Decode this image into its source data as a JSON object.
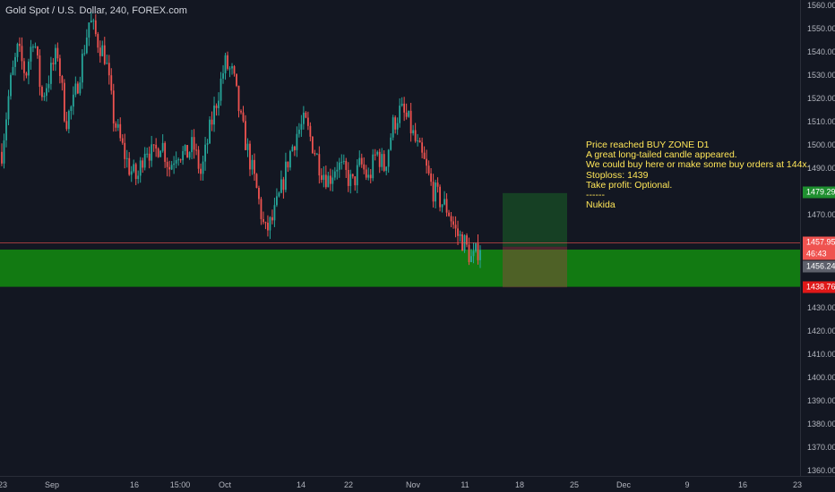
{
  "header": {
    "title": "Gold Spot / U.S. Dollar, 240, FOREX.com"
  },
  "annotation": {
    "lines": [
      "Price reached BUY ZONE D1",
      "A great long-tailed candle appeared.",
      "We could buy here or make some buy orders at 144x.",
      "Stoploss: 1439",
      "Take profit: Optional.",
      "------",
      "Nukida"
    ]
  },
  "price_axis": {
    "ticks": [
      "1560.00",
      "1550.00",
      "1540.00",
      "1530.00",
      "1520.00",
      "1510.00",
      "1500.00",
      "1490.00",
      "1470.00",
      "1430.00",
      "1420.00",
      "1410.00",
      "1400.00",
      "1390.00",
      "1380.00",
      "1370.00",
      "1360.00"
    ]
  },
  "price_labels": {
    "take_profit": {
      "text": "1479.29",
      "color": "#1e8f2f"
    },
    "current": {
      "text": "1457.95",
      "color": "#ef5350"
    },
    "countdown": {
      "text": "46:43",
      "color": "#ef5350"
    },
    "entry": {
      "text": "1456.24",
      "color": "#5d606b"
    },
    "stoploss": {
      "text": "1438.76",
      "color": "#e01818"
    }
  },
  "time_axis": {
    "ticks": [
      "23",
      "Sep",
      "16",
      "15:00",
      "Oct",
      "14",
      "22",
      "Nov",
      "11",
      "18",
      "25",
      "Dec",
      "9",
      "16",
      "23"
    ]
  },
  "colors": {
    "background": "#131722",
    "up": "#26a69a",
    "down": "#ef5350",
    "zone": "#127a12",
    "annotation": "#ffe658"
  },
  "chart_data": {
    "type": "candlestick",
    "symbol": "XAUUSD",
    "ylim": [
      1358,
      1562
    ],
    "current_price": 1457.95,
    "buy_zone": [
      1439,
      1455
    ],
    "position": {
      "entry": 1456.24,
      "take_profit": 1479.29,
      "stop_loss": 1438.76
    },
    "path": [
      1497,
      1525,
      1541,
      1530,
      1548,
      1520,
      1530,
      1540,
      1510,
      1518,
      1535,
      1554,
      1545,
      1538,
      1512,
      1500,
      1490,
      1485,
      1500,
      1495,
      1502,
      1490,
      1498,
      1495,
      1500,
      1487,
      1505,
      1520,
      1535,
      1530,
      1510,
      1495,
      1480,
      1462,
      1468,
      1480,
      1495,
      1505,
      1510,
      1500,
      1490,
      1485,
      1492,
      1488,
      1483,
      1492,
      1485,
      1497,
      1490,
      1508,
      1515,
      1510,
      1500,
      1492,
      1481,
      1476,
      1472,
      1462,
      1458,
      1450,
      1457
    ]
  }
}
